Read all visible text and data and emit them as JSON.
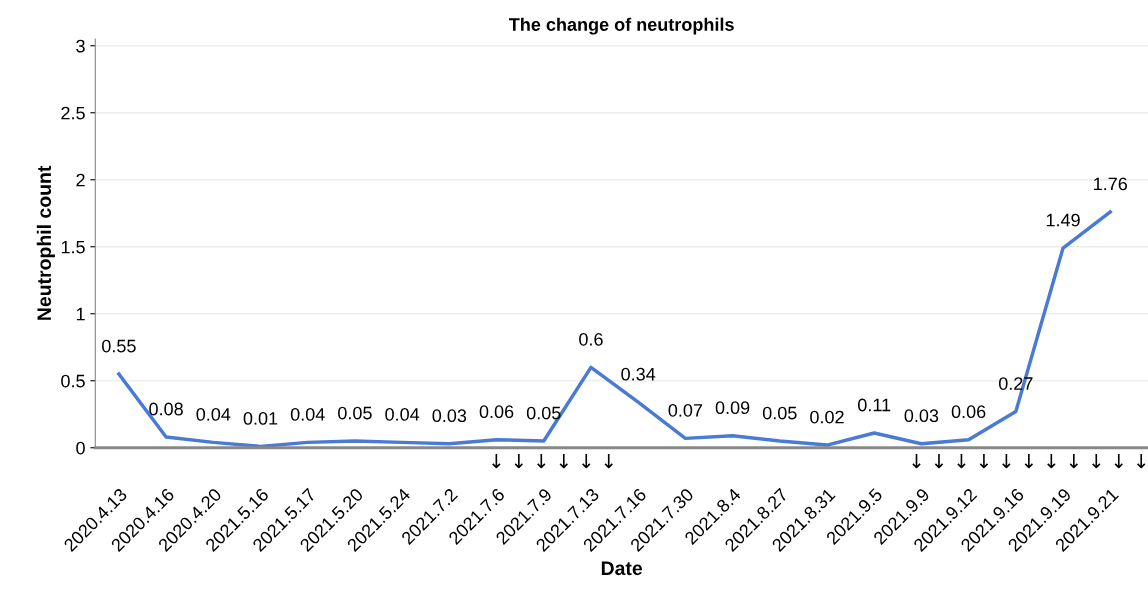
{
  "chart_data": {
    "type": "line",
    "title": "The change of neutrophils",
    "xlabel": "Date",
    "ylabel": "Neutrophil count",
    "categories": [
      "2020.4.13",
      "2020.4.16",
      "2020.4.20",
      "2021.5.16",
      "2021.5.17",
      "2021.5.20",
      "2021.5.24",
      "2021.7.2",
      "2021.7.6",
      "2021.7.9",
      "2021.7.13",
      "2021.7.16",
      "2021.7.30",
      "2021.8.4",
      "2021.8.27",
      "2021.8.31",
      "2021.9.5",
      "2021.9.9",
      "2021.9.12",
      "2021.9.16",
      "2021.9.19",
      "2021.9.21"
    ],
    "series": [
      {
        "color": "#4a7bd4",
        "values": [
          0.55,
          0.08,
          0.04,
          0.01,
          0.04,
          0.05,
          0.04,
          0.03,
          0.06,
          0.05,
          0.6,
          0.34,
          0.07,
          0.09,
          0.05,
          0.02,
          0.11,
          0.03,
          0.06,
          0.27,
          1.49,
          1.76
        ]
      }
    ],
    "ylim": [
      0,
      3.05
    ],
    "yticks": [
      0,
      0.5,
      1,
      1.5,
      2,
      2.5,
      3
    ],
    "grid": "y",
    "data_labels": true,
    "marker": "none",
    "line_style": "solid",
    "annotations": [
      "↓ ↓ ↓ ↓ ↓ ↓",
      "↓ ↓ ↓ ↓ ↓ ↓ ↓ ↓ ↓ ↓ ↓"
    ]
  }
}
